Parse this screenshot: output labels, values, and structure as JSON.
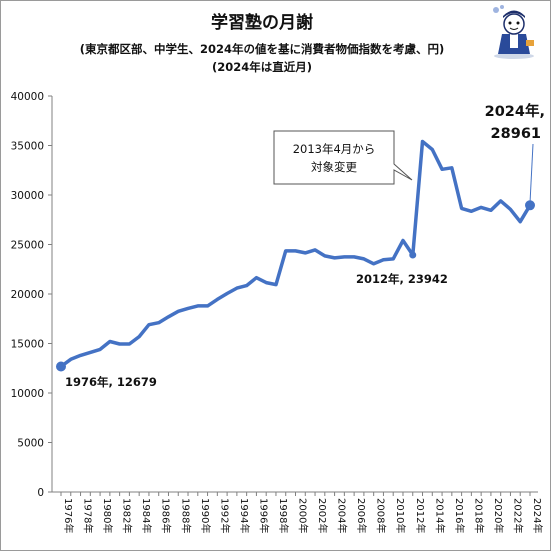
{
  "chart_data": {
    "type": "line",
    "title": "学習塾の月謝",
    "subtitle_lines": [
      "(東京都区部、中学生、2024年の値を基に消費者物価指数を考慮、円)",
      "(2024年は直近月)"
    ],
    "xlabel": "",
    "ylabel": "",
    "ylim": [
      0,
      40000
    ],
    "yticks": [
      0,
      5000,
      10000,
      15000,
      20000,
      25000,
      30000,
      35000,
      40000
    ],
    "grid": false,
    "legend": "none",
    "x_tick_labels": [
      "1976年",
      "1978年",
      "1980年",
      "1982年",
      "1984年",
      "1986年",
      "1988年",
      "1990年",
      "1992年",
      "1994年",
      "1996年",
      "1998年",
      "2000年",
      "2002年",
      "2004年",
      "2006年",
      "2008年",
      "2010年",
      "2012年",
      "2014年",
      "2016年",
      "2018年",
      "2020年",
      "2022年",
      "2024年"
    ],
    "series": [
      {
        "color": "#4472c4",
        "x": [
          1976,
          1977,
          1978,
          1979,
          1980,
          1981,
          1982,
          1983,
          1984,
          1985,
          1986,
          1987,
          1988,
          1989,
          1990,
          1991,
          1992,
          1993,
          1994,
          1995,
          1996,
          1997,
          1998,
          1999,
          2000,
          2001,
          2002,
          2003,
          2004,
          2005,
          2006,
          2007,
          2008,
          2009,
          2010,
          2011,
          2012,
          2013,
          2014,
          2015,
          2016,
          2017,
          2018,
          2019,
          2020,
          2021,
          2022,
          2023,
          2024
        ],
        "values": [
          12679,
          13400,
          13800,
          14100,
          14400,
          15200,
          14950,
          14950,
          15700,
          16900,
          17100,
          17700,
          18250,
          18550,
          18800,
          18800,
          19450,
          20050,
          20600,
          20850,
          21650,
          21150,
          20950,
          24350,
          24350,
          24150,
          24450,
          23850,
          23650,
          23750,
          23750,
          23550,
          23050,
          23450,
          23550,
          25400,
          23942,
          35400,
          34600,
          32600,
          32750,
          28650,
          28350,
          28750,
          28450,
          29400,
          28550,
          27300,
          28961
        ]
      }
    ],
    "annotations": [
      {
        "label": "1976年, 12679",
        "x": 1976,
        "y": 12679
      },
      {
        "label": "2012年, 23942",
        "x": 2012,
        "y": 23942
      },
      {
        "label_lines": [
          "2024年,",
          "28961"
        ],
        "x": 2024,
        "y": 28961
      },
      {
        "label_lines": [
          "2013年4月から",
          "対象変更"
        ],
        "x": 2013,
        "y": 35400
      }
    ]
  },
  "mascot_icon": "school-kid-mascot-icon",
  "accent_color": "#4472c4"
}
